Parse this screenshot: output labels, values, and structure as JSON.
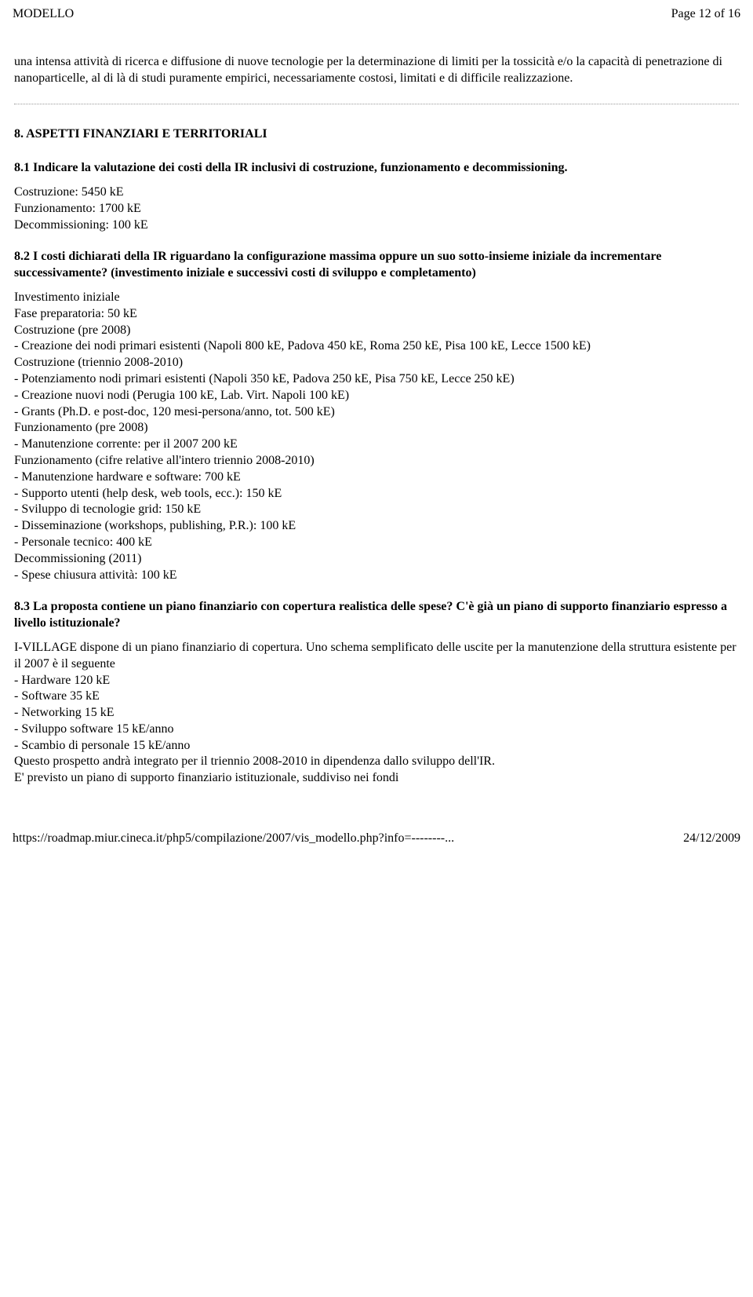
{
  "header": {
    "left": "MODELLO",
    "right": "Page 12 of 16"
  },
  "intro_para": "una intensa attività di ricerca e diffusione di nuove tecnologie per la determinazione di limiti per la tossicità e/o la capacità di penetrazione di nanoparticelle, al di là di studi puramente empirici, necessariamente costosi, limitati e di difficile realizzazione.",
  "section8": {
    "title": "8. ASPETTI FINANZIARI E TERRITORIALI",
    "s1": {
      "heading": "8.1 Indicare la valutazione dei costi della IR inclusivi di costruzione, funzionamento e decommissioning.",
      "lines": [
        "Costruzione: 5450 kE",
        "Funzionamento: 1700 kE",
        "Decommissioning: 100 kE"
      ]
    },
    "s2": {
      "heading": "8.2 I costi dichiarati della IR riguardano la configurazione massima oppure un suo sotto-insieme iniziale da incrementare successivamente? (investimento iniziale e successivi costi di sviluppo e completamento)",
      "lines": [
        "Investimento iniziale",
        "Fase preparatoria: 50 kE",
        "Costruzione (pre 2008)",
        "- Creazione dei nodi primari esistenti (Napoli 800 kE, Padova 450 kE, Roma 250 kE, Pisa 100 kE, Lecce 1500 kE)",
        "Costruzione (triennio 2008-2010)",
        "- Potenziamento nodi primari esistenti (Napoli 350 kE, Padova 250 kE, Pisa 750 kE, Lecce 250 kE)",
        "- Creazione nuovi nodi (Perugia 100 kE, Lab. Virt. Napoli 100 kE)",
        "- Grants (Ph.D. e post-doc, 120 mesi-persona/anno, tot. 500 kE)",
        "Funzionamento (pre 2008)",
        "- Manutenzione corrente: per il 2007 200 kE",
        "Funzionamento (cifre relative all'intero triennio 2008-2010)",
        "- Manutenzione hardware e software: 700 kE",
        "- Supporto utenti (help desk, web tools, ecc.): 150 kE",
        "- Sviluppo di tecnologie grid: 150 kE",
        "- Disseminazione (workshops, publishing, P.R.): 100 kE",
        "- Personale tecnico: 400 kE",
        "Decommissioning (2011)",
        "- Spese chiusura attività: 100 kE"
      ]
    },
    "s3": {
      "heading": "8.3 La proposta contiene un piano finanziario con copertura realistica delle spese? C'è già un piano di supporto finanziario espresso a livello istituzionale?",
      "lines": [
        "I-VILLAGE dispone di un piano finanziario di copertura. Uno schema semplificato delle uscite per la manutenzione della struttura esistente per il 2007 è il seguente",
        "- Hardware 120 kE",
        "- Software 35 kE",
        "- Networking 15 kE",
        "- Sviluppo software 15 kE/anno",
        "- Scambio di personale 15 kE/anno",
        "Questo prospetto andrà integrato per il triennio 2008-2010 in dipendenza dallo sviluppo dell'IR.",
        "E' previsto un piano di supporto finanziario istituzionale, suddiviso nei fondi"
      ]
    }
  },
  "footer": {
    "left": "https://roadmap.miur.cineca.it/php5/compilazione/2007/vis_modello.php?info=--------...",
    "right": "24/12/2009"
  }
}
